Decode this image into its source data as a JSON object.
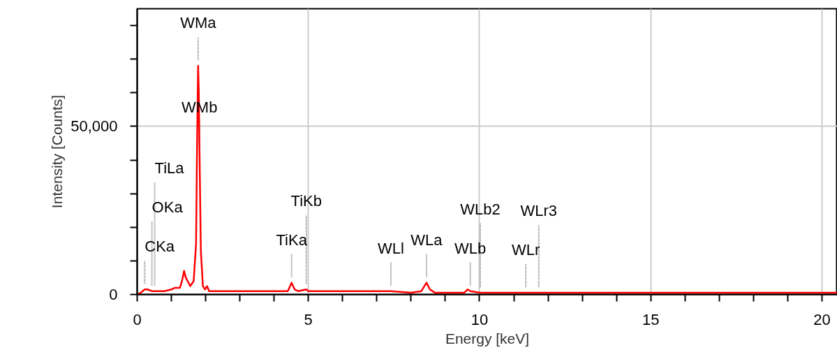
{
  "chart_data": {
    "type": "line",
    "xlabel": "Energy [keV]",
    "ylabel": "Intensity [Counts]",
    "xlim": [
      0,
      20.45
    ],
    "ylim": [
      0,
      85000
    ],
    "xticks": [
      0,
      {
        "value": 1,
        "label": null
      },
      {
        "value": 2,
        "label": null
      },
      {
        "value": 3,
        "label": null
      },
      {
        "value": 4,
        "label": null
      },
      5,
      {
        "value": 6,
        "label": null
      },
      {
        "value": 7,
        "label": null
      },
      {
        "value": 8,
        "label": null
      },
      {
        "value": 9,
        "label": null
      },
      10,
      {
        "value": 11,
        "label": null
      },
      {
        "value": 12,
        "label": null
      },
      {
        "value": 13,
        "label": null
      },
      {
        "value": 14,
        "label": null
      },
      15,
      {
        "value": 16,
        "label": null
      },
      {
        "value": 17,
        "label": null
      },
      {
        "value": 18,
        "label": null
      },
      {
        "value": 19,
        "label": null
      },
      20
    ],
    "yticks": [
      0,
      {
        "value": 10000,
        "label": null
      },
      {
        "value": 20000,
        "label": null
      },
      {
        "value": 30000,
        "label": null
      },
      {
        "value": 40000,
        "label": null
      },
      {
        "value": 50000,
        "label": "50,000"
      },
      {
        "value": 60000,
        "label": null
      },
      {
        "value": 70000,
        "label": null
      },
      {
        "value": 80000,
        "label": null
      }
    ],
    "grid": true,
    "marker": "none",
    "line_style": "solid",
    "series": [
      {
        "color": "#ff0000",
        "x": [
          0,
          0.1,
          0.22,
          0.3,
          0.43,
          0.51,
          0.8,
          1.0,
          1.1,
          1.25,
          1.32,
          1.37,
          1.42,
          1.55,
          1.65,
          1.72,
          1.75,
          1.78,
          1.8,
          1.82,
          1.86,
          1.92,
          1.98,
          2.04,
          2.1,
          3.0,
          4.1,
          4.4,
          4.51,
          4.6,
          4.7,
          4.94,
          5.0,
          6.0,
          7.41,
          8.0,
          8.3,
          8.45,
          8.55,
          8.7,
          9.0,
          9.55,
          9.65,
          9.73,
          10.02,
          10.1,
          11.35,
          11.73,
          15.0,
          17.0,
          20.45
        ],
        "values": [
          0,
          500,
          1500,
          1500,
          1000,
          1000,
          1000,
          1500,
          2000,
          2000,
          4500,
          7000,
          5000,
          2500,
          4000,
          15000,
          45000,
          68000,
          60000,
          43000,
          13000,
          2500,
          1500,
          2500,
          1000,
          1000,
          1000,
          1000,
          3500,
          1500,
          1000,
          1500,
          1000,
          1000,
          1000,
          500,
          1000,
          3500,
          1500,
          500,
          500,
          500,
          1500,
          1000,
          500,
          500,
          500,
          500,
          500,
          500,
          500
        ]
      }
    ],
    "annotations": [
      {
        "text": "CKa",
        "x": 0.22,
        "y": 1500
      },
      {
        "text": "OKa",
        "x": 0.43,
        "y": 1000
      },
      {
        "text": "TiLa",
        "x": 0.51,
        "y": 1000
      },
      {
        "text": "WMa",
        "x": 1.78,
        "y": 68000
      },
      {
        "text": "WMb",
        "x": 1.82,
        "y": 43000
      },
      {
        "text": "TiKa",
        "x": 4.51,
        "y": 3500
      },
      {
        "text": "TiKb",
        "x": 4.94,
        "y": 1500
      },
      {
        "text": "WLl",
        "x": 7.41,
        "y": 1000
      },
      {
        "text": "WLa",
        "x": 8.45,
        "y": 3500
      },
      {
        "text": "WLb",
        "x": 9.73,
        "y": 1000
      },
      {
        "text": "WLb2",
        "x": 10.02,
        "y": 500
      },
      {
        "text": "WLr",
        "x": 11.35,
        "y": 500
      },
      {
        "text": "WLr3",
        "x": 11.73,
        "y": 500
      }
    ]
  }
}
